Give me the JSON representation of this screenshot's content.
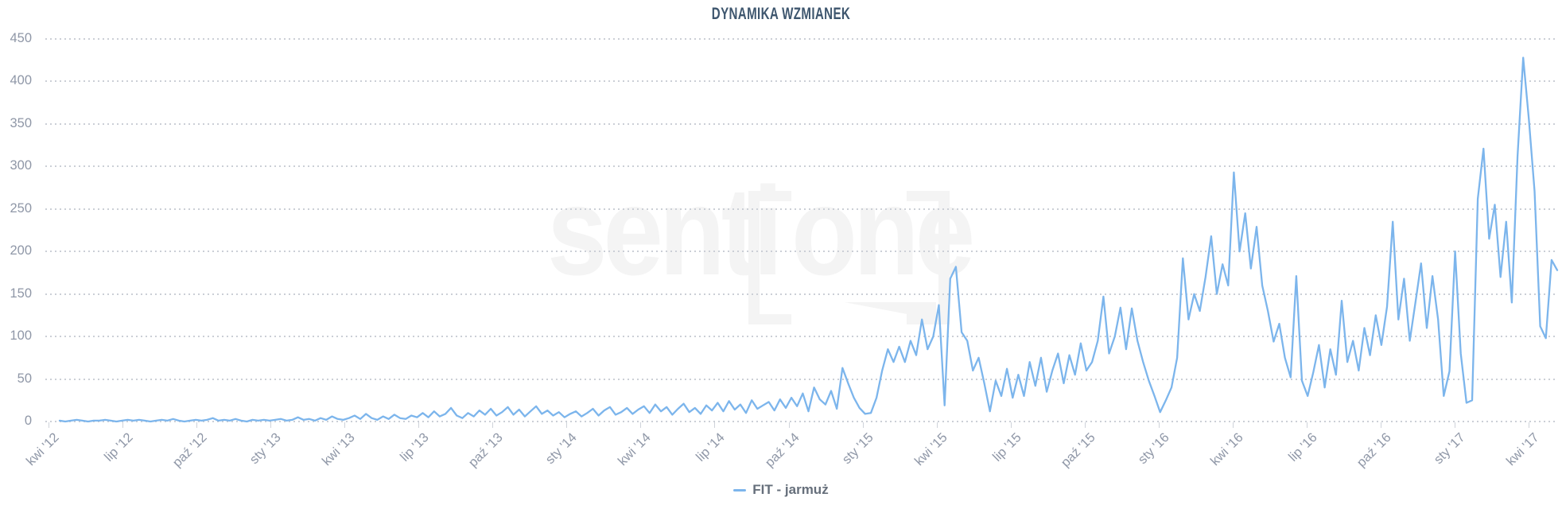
{
  "chart_title": "DYNAMIKA WZMIANEK",
  "watermark": {
    "part1": "senti",
    "part2": "one"
  },
  "legend": {
    "series_label": "FIT - jarmuż"
  },
  "colors": {
    "series_line": "#7cb5ec",
    "title_text": "#3e566e",
    "axis_label_text": "#8f97a7",
    "gridline_dot": "#cbcfd6",
    "tick_mark": "#cfd3da",
    "legend_text": "#666f7b",
    "watermark_gray": "#f4f4f4",
    "background": "#ffffff"
  },
  "chart_data": {
    "type": "line",
    "title": "DYNAMIKA WZMIANEK",
    "series_name": "FIT - jarmuż",
    "legend_position": "bottom-center",
    "grid": "dotted horizontal",
    "xlabel": "",
    "ylabel": "",
    "ylim": [
      0,
      450
    ],
    "y_ticks": [
      450,
      400,
      350,
      300,
      250,
      200,
      150,
      100,
      50,
      0
    ],
    "x_tick_labels": [
      "kwi '12",
      "lip '12",
      "paź '12",
      "sty '13",
      "kwi '13",
      "lip '13",
      "paź '13",
      "sty '14",
      "kwi '14",
      "lip '14",
      "paź '14",
      "sty '15",
      "kwi '15",
      "lip '15",
      "paź '15",
      "sty '16",
      "kwi '16",
      "lip '16",
      "paź '16",
      "sty '17",
      "kwi '17"
    ],
    "x_start": "kwi 2012",
    "x_end": "kwi 2017",
    "sampling": "weekly approximation of daily mention counts",
    "values": [
      1,
      0,
      1,
      2,
      1,
      0,
      1,
      1,
      2,
      1,
      0,
      1,
      2,
      1,
      2,
      1,
      0,
      1,
      2,
      1,
      3,
      1,
      0,
      1,
      2,
      1,
      2,
      4,
      1,
      2,
      1,
      3,
      1,
      0,
      2,
      1,
      2,
      1,
      2,
      3,
      1,
      2,
      5,
      2,
      3,
      1,
      4,
      2,
      6,
      3,
      2,
      4,
      7,
      3,
      9,
      4,
      2,
      6,
      3,
      8,
      4,
      3,
      7,
      5,
      10,
      5,
      12,
      6,
      9,
      16,
      7,
      4,
      10,
      6,
      13,
      8,
      15,
      7,
      11,
      17,
      8,
      14,
      6,
      12,
      18,
      9,
      13,
      7,
      11,
      5,
      9,
      12,
      6,
      10,
      15,
      7,
      13,
      17,
      8,
      11,
      16,
      9,
      14,
      18,
      10,
      20,
      12,
      17,
      8,
      15,
      21,
      11,
      16,
      9,
      19,
      13,
      22,
      12,
      24,
      14,
      20,
      10,
      25,
      15,
      19,
      23,
      13,
      26,
      16,
      28,
      18,
      33,
      12,
      40,
      26,
      20,
      36,
      15,
      63,
      45,
      28,
      16,
      9,
      10,
      28,
      60,
      85,
      70,
      88,
      70,
      95,
      78,
      120,
      85,
      100,
      137,
      19,
      168,
      182,
      105,
      95,
      60,
      75,
      45,
      12,
      48,
      30,
      62,
      28,
      55,
      30,
      70,
      42,
      75,
      35,
      60,
      80,
      45,
      78,
      55,
      92,
      60,
      70,
      95,
      147,
      80,
      100,
      134,
      85,
      133,
      95,
      70,
      48,
      30,
      11,
      25,
      40,
      75,
      192,
      120,
      150,
      130,
      170,
      218,
      150,
      185,
      160,
      293,
      200,
      245,
      180,
      229,
      160,
      130,
      94,
      115,
      75,
      52,
      171,
      48,
      30,
      58,
      90,
      40,
      85,
      55,
      142,
      70,
      95,
      60,
      110,
      78,
      125,
      90,
      135,
      235,
      120,
      168,
      95,
      140,
      186,
      110,
      171,
      120,
      30,
      59,
      200,
      80,
      22,
      25,
      262,
      321,
      215,
      255,
      170,
      235,
      140,
      312,
      428,
      356,
      271,
      112,
      98,
      190,
      178
    ]
  }
}
